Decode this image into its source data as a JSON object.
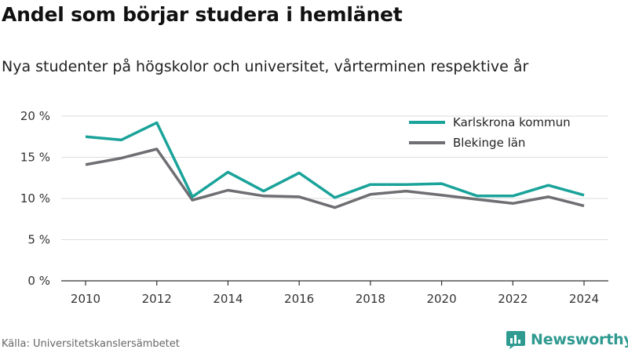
{
  "header": {
    "title": "Andel som börjar studera i hemlänet",
    "subtitle": "Nya studenter på högskolor och universitet, vårterminen respektive år"
  },
  "footer": {
    "source": "Källa: Universitetskanslersämbetet",
    "brand": "Newsworthy",
    "brand_color": "#2f9a90",
    "brand_icon": "bar-chart-speech-bubble-icon"
  },
  "chart_data": {
    "type": "line",
    "x": [
      2010,
      2011,
      2012,
      2013,
      2014,
      2015,
      2016,
      2017,
      2018,
      2019,
      2020,
      2021,
      2022,
      2023,
      2024
    ],
    "x_ticks": [
      "2010",
      "2012",
      "2014",
      "2016",
      "2018",
      "2020",
      "2022",
      "2024"
    ],
    "y_ticks": [
      "0 %",
      "5 %",
      "10 %",
      "15 %",
      "20 %"
    ],
    "ylim": [
      0,
      20
    ],
    "grid": true,
    "legend_position": "top-right",
    "series": [
      {
        "name": "Karlskrona kommun",
        "color": "#1aa39a",
        "values": [
          17.5,
          17.1,
          19.2,
          10.2,
          13.2,
          10.9,
          13.1,
          10.1,
          11.7,
          11.7,
          11.8,
          10.3,
          10.3,
          11.6,
          10.4
        ]
      },
      {
        "name": "Blekinge län",
        "color": "#6e6e73",
        "values": [
          14.1,
          14.9,
          16.0,
          9.8,
          11.0,
          10.3,
          10.2,
          8.9,
          10.5,
          10.9,
          10.4,
          9.9,
          9.4,
          10.2,
          9.1
        ]
      }
    ]
  }
}
